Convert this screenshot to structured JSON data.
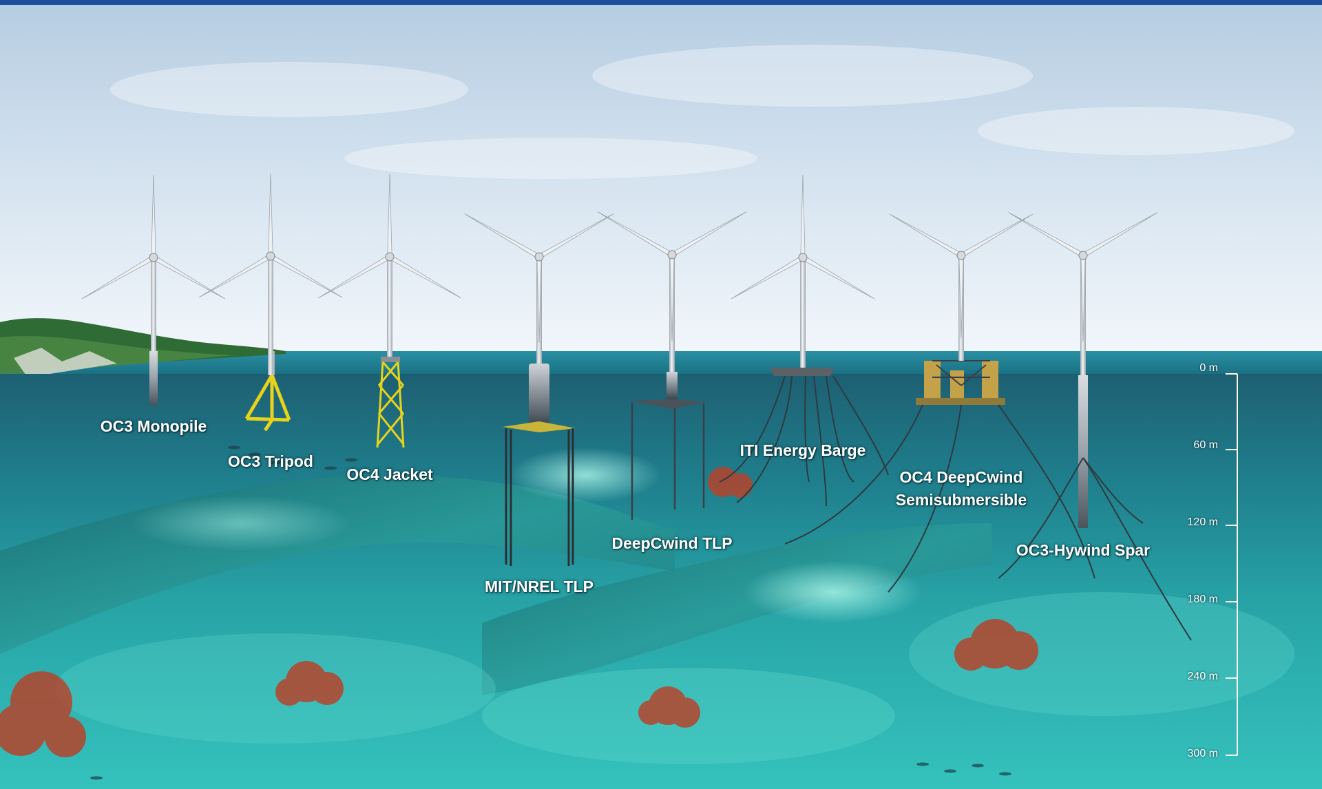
{
  "colors": {
    "top_rule": "#1f4e9c",
    "sky_top": "#b9cfe3",
    "sky_bottom": "#eef4fa",
    "sea_surface": "#1f7f93",
    "water_deep": "#1e6f7f",
    "seabed": "#2fb8b5",
    "seabed_light": "#7ee0d6",
    "coral": "#b5442b",
    "jacket_yellow": "#e7d21c",
    "platform_tan": "#c4a24a",
    "tower_grey": "#c9ced3",
    "land_green": "#2f6b35"
  },
  "turbines": [
    {
      "label": "OC3 Monopile",
      "foundation": "monopile"
    },
    {
      "label": "OC3 Tripod",
      "foundation": "tripod"
    },
    {
      "label": "OC4 Jacket",
      "foundation": "jacket"
    },
    {
      "label": "MIT/NREL TLP",
      "foundation": "tlp-mit"
    },
    {
      "label": "DeepCwind TLP",
      "foundation": "tlp-deepcwind"
    },
    {
      "label": "ITI Energy Barge",
      "foundation": "barge"
    },
    {
      "label": "OC4 DeepCwind Semisubmersible",
      "label_line1": "OC4 DeepCwind",
      "label_line2": "Semisubmersible",
      "foundation": "semisubmersible"
    },
    {
      "label": "OC3-Hywind Spar",
      "foundation": "spar"
    }
  ],
  "depth_scale": {
    "ticks": [
      "0 m",
      "60 m",
      "120 m",
      "180 m",
      "240 m",
      "300 m"
    ],
    "values_m": [
      0,
      60,
      120,
      180,
      240,
      300
    ]
  }
}
